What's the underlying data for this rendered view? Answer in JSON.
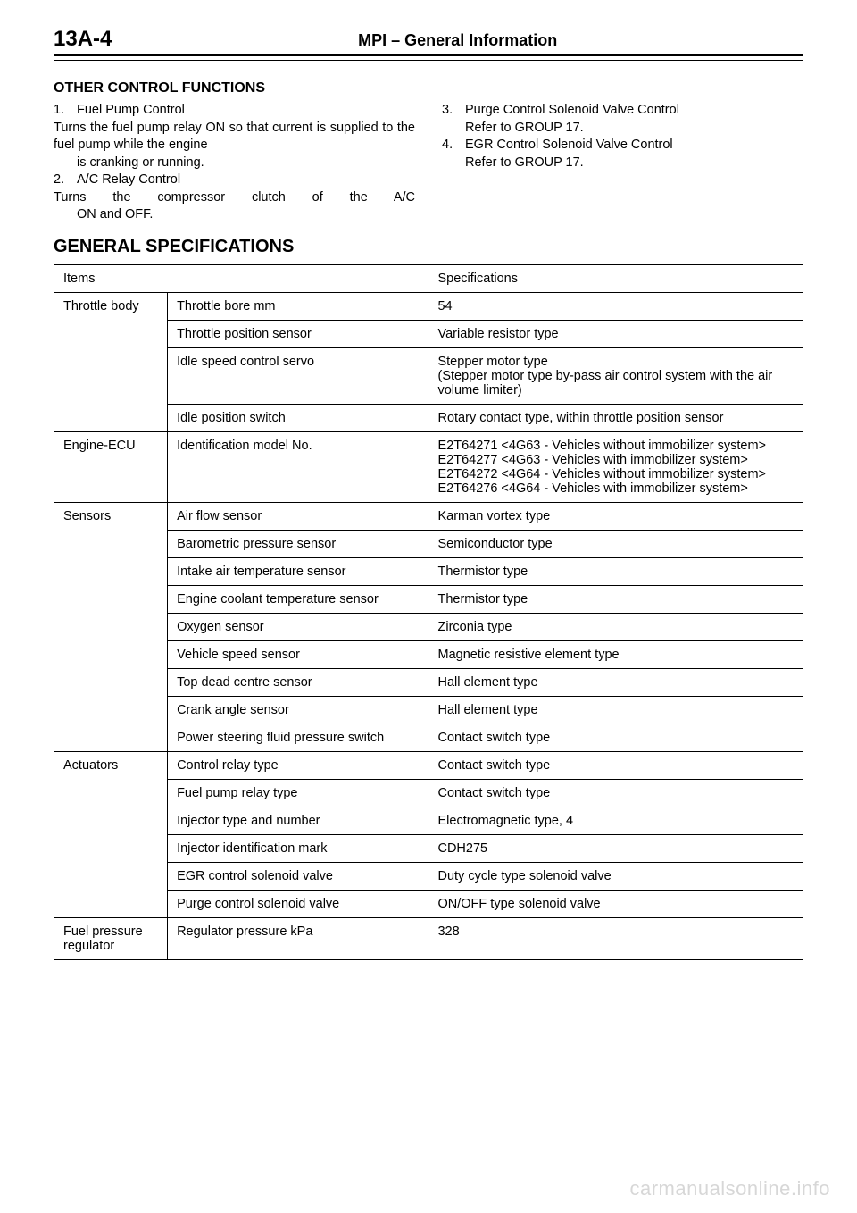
{
  "page_number": "13A-4",
  "header_title": "MPI – General Information",
  "sections": {
    "other_title": "OTHER CONTROL FUNCTIONS",
    "gen_spec_title": "GENERAL SPECIFICATIONS"
  },
  "left_items": [
    {
      "num": "1.",
      "title": "Fuel Pump Control",
      "body": "Turns the fuel pump relay ON so that current is supplied to the fuel pump while the engine is cranking or running."
    },
    {
      "num": "2.",
      "title": "A/C Relay Control",
      "body": "Turns the compressor clutch of the A/C ON and OFF."
    }
  ],
  "right_items": [
    {
      "num": "3.",
      "title": "Purge Control Solenoid Valve Control",
      "body": "Refer to GROUP 17."
    },
    {
      "num": "4.",
      "title": "EGR Control Solenoid Valve Control",
      "body": "Refer to GROUP 17."
    }
  ],
  "table": {
    "head_items": "Items",
    "head_spec": "Specifications",
    "rows": [
      {
        "cat": "Throttle body",
        "rowspan": 4,
        "sub": "Throttle bore   mm",
        "spec": "54"
      },
      {
        "sub": "Throttle position sensor",
        "spec": "Variable resistor type"
      },
      {
        "sub": "Idle speed control servo",
        "spec": "Stepper motor type\n(Stepper motor type by-pass air control system with the air volume limiter)"
      },
      {
        "sub": "Idle position switch",
        "spec": "Rotary contact type, within throttle position sensor"
      },
      {
        "cat": "Engine-ECU",
        "rowspan": 1,
        "sub": "Identification model No.",
        "spec": "E2T64271 <4G63 - Vehicles without immobilizer system>\nE2T64277 <4G63 - Vehicles with immobilizer system>\nE2T64272 <4G64 - Vehicles without immobilizer system>\nE2T64276 <4G64 - Vehicles with immobilizer system>"
      },
      {
        "cat": "Sensors",
        "rowspan": 9,
        "sub": "Air flow sensor",
        "spec": "Karman vortex type"
      },
      {
        "sub": "Barometric pressure sensor",
        "spec": "Semiconductor type"
      },
      {
        "sub": "Intake air temperature sensor",
        "spec": "Thermistor type"
      },
      {
        "sub": "Engine coolant temperature sensor",
        "spec": "Thermistor type"
      },
      {
        "sub": "Oxygen sensor",
        "spec": "Zirconia type"
      },
      {
        "sub": "Vehicle speed sensor",
        "spec": "Magnetic resistive element type"
      },
      {
        "sub": "Top dead centre sensor",
        "spec": "Hall element type"
      },
      {
        "sub": "Crank angle sensor",
        "spec": "Hall element type"
      },
      {
        "sub": "Power steering fluid pressure switch",
        "spec": "Contact switch type"
      },
      {
        "cat": "Actuators",
        "rowspan": 6,
        "sub": "Control relay type",
        "spec": "Contact switch type"
      },
      {
        "sub": "Fuel pump relay type",
        "spec": "Contact switch type"
      },
      {
        "sub": "Injector type and number",
        "spec": "Electromagnetic type, 4"
      },
      {
        "sub": "Injector identification mark",
        "spec": "CDH275"
      },
      {
        "sub": "EGR control solenoid valve",
        "spec": "Duty cycle type solenoid valve"
      },
      {
        "sub": "Purge control solenoid valve",
        "spec": "ON/OFF type solenoid valve"
      },
      {
        "cat": "Fuel pressure regulator",
        "rowspan": 1,
        "sub": "Regulator pressure   kPa",
        "spec": "328"
      }
    ]
  },
  "watermark": "carmanualsonline.info",
  "styling": {
    "page_bg": "#ffffff",
    "text_color": "#000000",
    "border_color": "#000000",
    "watermark_color": "#d7d7d7",
    "h2_fontsize": 16,
    "h1_fontsize": 20,
    "body_fontsize": 14.5,
    "page_num_fontsize": 24,
    "header_rule_weight": 3
  }
}
